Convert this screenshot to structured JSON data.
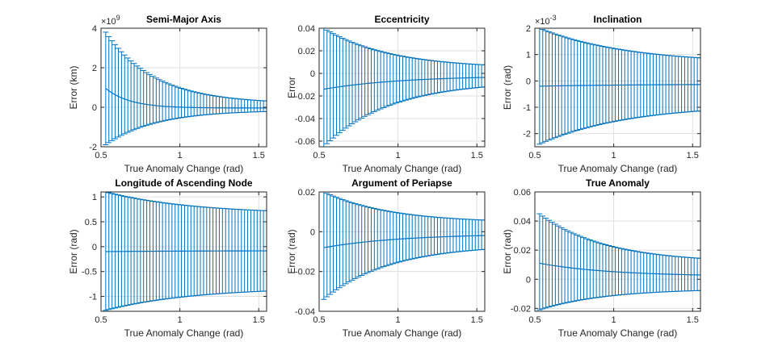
{
  "chart_data": [
    {
      "type": "errorbar",
      "title": "Semi-Major Axis",
      "xlabel": "True Anomaly Change (rad)",
      "ylabel": "Error (km)",
      "exponent": "9",
      "xlim": [
        0.5,
        1.55
      ],
      "ylim": [
        -2,
        4
      ],
      "xticks": [
        0.5,
        1,
        1.5
      ],
      "yticks": [
        -2,
        0,
        2,
        4
      ],
      "mean": {
        "first": 0.95,
        "final": -0.04,
        "decay": 6.5
      },
      "err_upper": {
        "first": 3.8,
        "final": 0.18,
        "decay": 3.2
      },
      "err_lower": {
        "first": -1.9,
        "final": -0.15,
        "decay": 3.2
      },
      "color": "#0072bd"
    },
    {
      "type": "errorbar",
      "title": "Eccentricity",
      "xlabel": "True Anomaly Change (rad)",
      "ylabel": "Error",
      "exponent": "",
      "xlim": [
        0.5,
        1.55
      ],
      "ylim": [
        -0.065,
        0.04
      ],
      "xticks": [
        0.5,
        1,
        1.5
      ],
      "yticks": [
        -0.06,
        -0.04,
        -0.02,
        0,
        0.02,
        0.04
      ],
      "mean": {
        "first": -0.014,
        "final": -0.002,
        "decay": 2.0
      },
      "err_upper": {
        "first": 0.04,
        "final": 0.0045,
        "decay": 2.4
      },
      "err_lower": {
        "first": -0.065,
        "final": -0.007,
        "decay": 2.4
      },
      "color": "#0072bd"
    },
    {
      "type": "errorbar",
      "title": "Inclination",
      "xlabel": "True Anomaly Change (rad)",
      "ylabel": "Error (rad)",
      "exponent": "-3",
      "xlim": [
        0.5,
        1.55
      ],
      "ylim": [
        -2.5,
        2
      ],
      "xticks": [
        0.5,
        1,
        1.5
      ],
      "yticks": [
        -2,
        -1,
        0,
        1,
        2
      ],
      "mean": {
        "first": -0.2,
        "final": -0.12,
        "decay": 1.5
      },
      "err_upper": {
        "first": 2.0,
        "final": 0.66,
        "decay": 1.8
      },
      "err_lower": {
        "first": -2.4,
        "final": -0.9,
        "decay": 1.8
      },
      "color": "#0072bd"
    },
    {
      "type": "errorbar",
      "title": "Longitude of Ascending Node",
      "xlabel": "True Anomaly Change (rad)",
      "ylabel": "Error (rad)",
      "exponent": "",
      "xlim": [
        0.5,
        1.55
      ],
      "ylim": [
        -1.3,
        1.1
      ],
      "xticks": [
        0.5,
        1,
        1.5
      ],
      "yticks": [
        -1,
        -0.5,
        0,
        0.5,
        1
      ],
      "mean": {
        "first": -0.1,
        "final": -0.08,
        "decay": 1.5
      },
      "err_upper": {
        "first": 1.1,
        "final": 0.65,
        "decay": 1.8
      },
      "err_lower": {
        "first": -1.28,
        "final": -0.82,
        "decay": 1.8
      },
      "color": "#0072bd"
    },
    {
      "type": "errorbar",
      "title": "Argument of Periapse",
      "xlabel": "True Anomaly Change (rad)",
      "ylabel": "Error (rad)",
      "exponent": "",
      "xlim": [
        0.5,
        1.55
      ],
      "ylim": [
        -0.04,
        0.02
      ],
      "xticks": [
        0.5,
        1,
        1.5
      ],
      "yticks": [
        -0.04,
        -0.02,
        0,
        0.02
      ],
      "mean": {
        "first": -0.008,
        "final": -0.001,
        "decay": 2.0
      },
      "err_upper": {
        "first": 0.02,
        "final": 0.0045,
        "decay": 2.4
      },
      "err_lower": {
        "first": -0.034,
        "final": -0.0065,
        "decay": 2.4
      },
      "color": "#0072bd"
    },
    {
      "type": "errorbar",
      "title": "True Anomaly",
      "xlabel": "True Anomaly Change (rad)",
      "ylabel": "Error (rad)",
      "exponent": "",
      "xlim": [
        0.5,
        1.55
      ],
      "ylim": [
        -0.022,
        0.06
      ],
      "xticks": [
        0.5,
        1,
        1.5
      ],
      "yticks": [
        -0.02,
        0,
        0.02,
        0.04,
        0.06
      ],
      "mean": {
        "first": 0.011,
        "final": 0.002,
        "decay": 2.2
      },
      "err_upper": {
        "first": 0.045,
        "final": 0.0115,
        "decay": 2.4
      },
      "err_lower": {
        "first": -0.021,
        "final": -0.0065,
        "decay": 2.4
      },
      "color": "#0072bd"
    }
  ],
  "x_samples": {
    "start": 0.53,
    "end": 1.55,
    "count": 52
  }
}
